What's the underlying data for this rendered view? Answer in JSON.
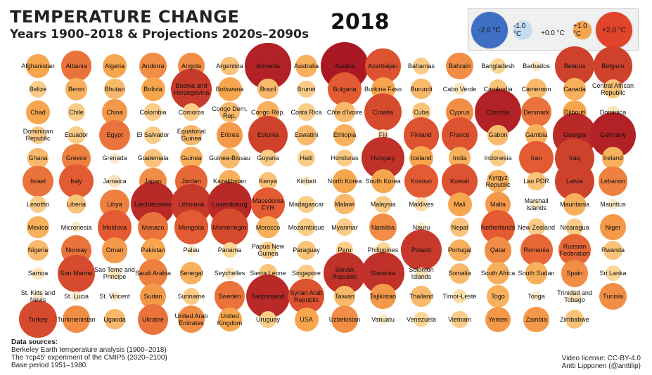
{
  "title": "TEMPERATURE CHANGE",
  "subtitle": "Years 1900–2018 & Projections 2020s–2090s",
  "year": "2018",
  "legend": [
    {
      "label": "-2.0 °C",
      "value": -2.0,
      "color": "#3f6fc4"
    },
    {
      "label": "-1.0 °C",
      "value": -1.0,
      "color": "#c2dcf3"
    },
    {
      "label": "+0.0 °C",
      "value": 0.0,
      "color": "#fdf7ea"
    },
    {
      "label": "+1.0 °C",
      "value": 1.0,
      "color": "#f7a64e"
    },
    {
      "label": "+2.0 °C",
      "value": 2.0,
      "color": "#e0452b"
    }
  ],
  "chart_data": {
    "type": "bubble-grid",
    "title": "TEMPERATURE CHANGE",
    "subtitle": "Years 1900–2018 & Projections 2020s–2090s",
    "year": "2018",
    "value_unit": "°C",
    "rows": [
      [
        [
          "Afghanistan",
          1.0
        ],
        [
          "Albania",
          1.4
        ],
        [
          "Algeria",
          1.0
        ],
        [
          "Andorra",
          1.2
        ],
        [
          "Angola",
          1.2
        ],
        [
          "Argentina",
          0.7
        ],
        [
          "Armenia",
          2.3
        ],
        [
          "Australia",
          0.9
        ],
        [
          "Austria",
          2.4
        ],
        [
          "Azerbaijan",
          1.7
        ],
        [
          "Bahamas",
          0.6
        ],
        [
          "Bahrain",
          1.2
        ],
        [
          "Bangladesh",
          0.5
        ],
        [
          "Barbados",
          0.2
        ],
        [
          "Belarus",
          1.9
        ],
        [
          "Belgium",
          1.9
        ]
      ],
      [
        [
          "Belize",
          0.6
        ],
        [
          "Benin",
          0.9
        ],
        [
          "Bhutan",
          0.8
        ],
        [
          "Bolivia",
          1.0
        ],
        [
          "Bosnia and Herzegovina",
          2.0
        ],
        [
          "Botswana",
          1.0
        ],
        [
          "Brazil",
          0.8
        ],
        [
          "Brunei",
          0.6
        ],
        [
          "Bulgaria",
          1.6
        ],
        [
          "Burkina Faso",
          1.0
        ],
        [
          "Burundi",
          0.8
        ],
        [
          "Cabo Verde",
          0.3
        ],
        [
          "Cambodia",
          0.7
        ],
        [
          "Cameroon",
          0.8
        ],
        [
          "Canada",
          0.9
        ],
        [
          "Central African Republic",
          0.7
        ]
      ],
      [
        [
          "Chad",
          1.0
        ],
        [
          "Chile",
          0.6
        ],
        [
          "China",
          1.1
        ],
        [
          "Colombia",
          0.6
        ],
        [
          "Comoros",
          0.6
        ],
        [
          "Congo Dem. Rep.",
          0.8
        ],
        [
          "Congo Rep.",
          0.9
        ],
        [
          "Costa Rica",
          0.6
        ],
        [
          "Côte d'Ivoire",
          0.8
        ],
        [
          "Croatia",
          1.8
        ],
        [
          "Cuba",
          0.7
        ],
        [
          "Cyprus",
          1.2
        ],
        [
          "Czechia",
          2.3
        ],
        [
          "Denmark",
          1.4
        ],
        [
          "Djibouti",
          1.0
        ],
        [
          "Dominica",
          0.3
        ]
      ],
      [
        [
          "Dominican Republic",
          0.6
        ],
        [
          "Ecuador",
          0.6
        ],
        [
          "Egypt",
          1.4
        ],
        [
          "El Salvador",
          0.6
        ],
        [
          "Equatorial Guinea",
          0.8
        ],
        [
          "Eritrea",
          1.1
        ],
        [
          "Estonia",
          1.9
        ],
        [
          "Eswatini",
          0.8
        ],
        [
          "Ethiopia",
          0.9
        ],
        [
          "Fiji",
          0.3
        ],
        [
          "Finland",
          1.7
        ],
        [
          "France",
          1.7
        ],
        [
          "Gabon",
          0.8
        ],
        [
          "Gambia",
          0.9
        ],
        [
          "Georgia",
          2.2
        ],
        [
          "Germany",
          2.3
        ]
      ],
      [
        [
          "Ghana",
          0.8
        ],
        [
          "Greece",
          1.3
        ],
        [
          "Grenada",
          0.2
        ],
        [
          "Guatemala",
          0.7
        ],
        [
          "Guinea",
          0.9
        ],
        [
          "Guinea-Bissau",
          0.8
        ],
        [
          "Guyana",
          0.6
        ],
        [
          "Haiti",
          0.6
        ],
        [
          "Honduras",
          0.6
        ],
        [
          "Hungary",
          2.1
        ],
        [
          "Iceland",
          1.0
        ],
        [
          "India",
          0.9
        ],
        [
          "Indonesia",
          0.6
        ],
        [
          "Iran",
          1.6
        ],
        [
          "Iraq",
          1.9
        ],
        [
          "Ireland",
          0.9
        ]
      ],
      [
        [
          "Israel",
          1.4
        ],
        [
          "Italy",
          1.6
        ],
        [
          "Jamaica",
          0.3
        ],
        [
          "Japan",
          1.2
        ],
        [
          "Jordan",
          1.5
        ],
        [
          "Kazakhstan",
          0.9
        ],
        [
          "Kenya",
          0.7
        ],
        [
          "Kiribati",
          0.2
        ],
        [
          "North Korea",
          1.0
        ],
        [
          "South Korea",
          1.0
        ],
        [
          "Kosovo",
          1.6
        ],
        [
          "Kuwait",
          1.7
        ],
        [
          "Kyrgyz Republic",
          0.9
        ],
        [
          "Lao PDR",
          0.7
        ],
        [
          "Latvia",
          1.9
        ],
        [
          "Lebanon",
          1.3
        ]
      ],
      [
        [
          "Lesotho",
          0.6
        ],
        [
          "Liberia",
          0.7
        ],
        [
          "Libya",
          1.3
        ],
        [
          "Liechtenstein",
          2.2
        ],
        [
          "Lithuania",
          2.0
        ],
        [
          "Luxembourg",
          2.2
        ],
        [
          "Macedonia FYR",
          1.6
        ],
        [
          "Madagascar",
          0.6
        ],
        [
          "Malawi",
          0.8
        ],
        [
          "Malaysia",
          0.6
        ],
        [
          "Maldives",
          0.4
        ],
        [
          "Mali",
          1.0
        ],
        [
          "Malta",
          1.1
        ],
        [
          "Marshall Islands",
          0.2
        ],
        [
          "Mauritania",
          0.9
        ],
        [
          "Mauritius",
          0.2
        ]
      ],
      [
        [
          "Mexico",
          0.9
        ],
        [
          "Micronesia",
          0.2
        ],
        [
          "Moldova",
          1.6
        ],
        [
          "Monaco",
          1.4
        ],
        [
          "Mongolia",
          1.6
        ],
        [
          "Montenegro",
          1.8
        ],
        [
          "Morocco",
          0.9
        ],
        [
          "Mozambique",
          0.6
        ],
        [
          "Myanmar",
          0.6
        ],
        [
          "Namibia",
          1.2
        ],
        [
          "Nauru",
          0.2
        ],
        [
          "Nepal",
          0.7
        ],
        [
          "Netherlands",
          1.6
        ],
        [
          "New Zealand",
          0.6
        ],
        [
          "Nicaragua",
          0.6
        ],
        [
          "Niger",
          1.1
        ]
      ],
      [
        [
          "Nigeria",
          0.8
        ],
        [
          "Norway",
          1.4
        ],
        [
          "Oman",
          1.1
        ],
        [
          "Pakistan",
          1.0
        ],
        [
          "Palau",
          0.2
        ],
        [
          "Panama",
          0.5
        ],
        [
          "Papua New Guinea",
          0.6
        ],
        [
          "Paraguay",
          0.7
        ],
        [
          "Peru",
          0.6
        ],
        [
          "Philippines",
          0.5
        ],
        [
          "Poland",
          2.0
        ],
        [
          "Portugal",
          0.9
        ],
        [
          "Qatar",
          1.2
        ],
        [
          "Romania",
          1.5
        ],
        [
          "Russian Federation",
          1.5
        ],
        [
          "Rwanda",
          0.7
        ]
      ],
      [
        [
          "Samoa",
          0.3
        ],
        [
          "San Marino",
          1.8
        ],
        [
          "Sao Tome and Principe",
          0.3
        ],
        [
          "Saudi Arabia",
          1.3
        ],
        [
          "Senegal",
          0.9
        ],
        [
          "Seychelles",
          0.3
        ],
        [
          "Sierra Leone",
          0.7
        ],
        [
          "Singapore",
          0.6
        ],
        [
          "Slovak Republic",
          2.1
        ],
        [
          "Slovenia",
          2.1
        ],
        [
          "Solomon Islands",
          0.3
        ],
        [
          "Somalia",
          0.8
        ],
        [
          "South Africa",
          0.9
        ],
        [
          "South Sudan",
          0.9
        ],
        [
          "Spain",
          1.2
        ],
        [
          "Sri Lanka",
          0.5
        ]
      ],
      [
        [
          "St. Kitts and Nevis",
          0.2
        ],
        [
          "St. Lucia",
          0.2
        ],
        [
          "St. Vincent",
          0.2
        ],
        [
          "Sudan",
          1.1
        ],
        [
          "Suriname",
          0.6
        ],
        [
          "Sweden",
          1.4
        ],
        [
          "Switzerland",
          2.2
        ],
        [
          "Syrian Arab Republic",
          1.7
        ],
        [
          "Taiwan",
          0.8
        ],
        [
          "Tajikistan",
          1.1
        ],
        [
          "Thailand",
          0.8
        ],
        [
          "Timor-Leste",
          0.4
        ],
        [
          "Togo",
          0.9
        ],
        [
          "Tonga",
          0.2
        ],
        [
          "Trinidad and Tobago",
          0.3
        ],
        [
          "Tunisia",
          1.2
        ]
      ],
      [
        [
          "Turkey",
          1.8
        ],
        [
          "Turkmenistan",
          1.2
        ],
        [
          "Uganda",
          0.8
        ],
        [
          "Ukraine",
          1.4
        ],
        [
          "United Arab Emirates",
          1.2
        ],
        [
          "United Kingdom",
          1.0
        ],
        [
          "Uruguay",
          0.6
        ],
        [
          "USA",
          1.0
        ],
        [
          "Uzbekistan",
          1.2
        ],
        [
          "Vanuatu",
          0.2
        ],
        [
          "Venezuela",
          0.5
        ],
        [
          "Vietnam",
          0.6
        ],
        [
          "Yemen",
          1.1
        ],
        [
          "Zambia",
          1.1
        ],
        [
          "Zimbabwe",
          0.7
        ]
      ]
    ]
  },
  "sources": {
    "heading": "Data sources:",
    "line1": "Berkeley Earth temperature analysis (1900–2018)",
    "line2": "The 'rcp45' experiment of the CMIP5 (2020–2100)",
    "line3": "Base period 1951–1980."
  },
  "license": {
    "line1": "Video license: CC-BY-4.0",
    "line2": "Antti Lipponen (@anttilip)"
  }
}
